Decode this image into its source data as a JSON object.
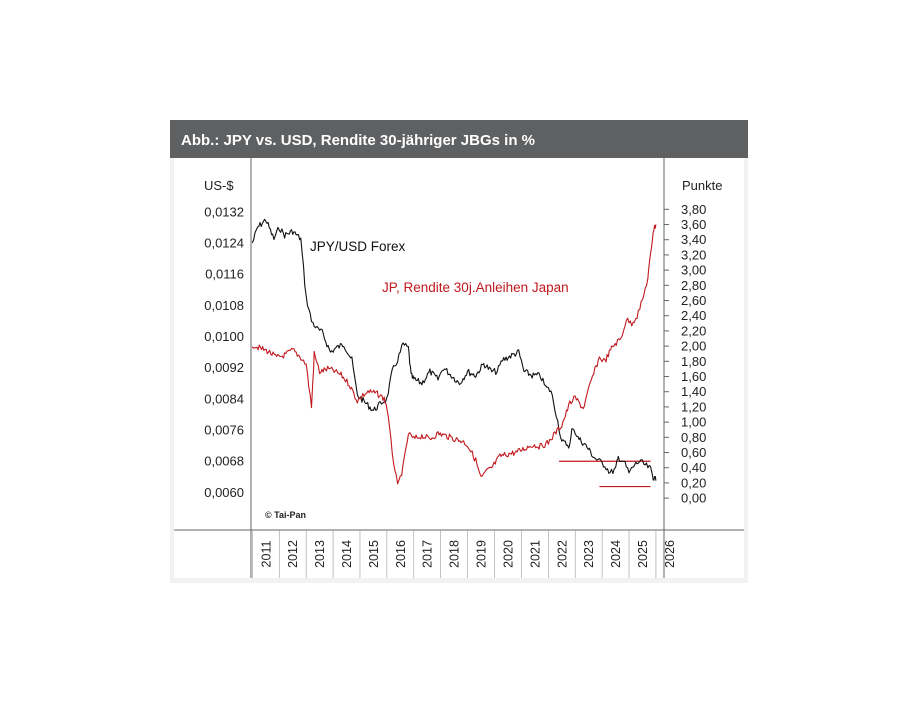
{
  "chart_data": {
    "type": "line",
    "title": "Abb.: JPY vs. USD, Rendite 30-jähriger JBGs in %",
    "ylabel_left": "US-$",
    "ylabel_right": "Punkte",
    "source": "© Tai-Pan",
    "colors": {
      "header": "#5f6062",
      "jpy": "#111111",
      "yield": "#c0191e"
    },
    "x_ticks": [
      "2011",
      "2012",
      "2013",
      "2014",
      "2015",
      "2016",
      "2017",
      "2018",
      "2019",
      "2020",
      "2021",
      "2022",
      "2023",
      "2024",
      "2025",
      "2026"
    ],
    "y_left": {
      "min": 0.0056,
      "max": 0.0134,
      "ticks": [
        "0,0132",
        "0,0124",
        "0,0116",
        "0,0108",
        "0,0100",
        "0,0092",
        "0,0084",
        "0,0076",
        "0,0068",
        "0,0060"
      ],
      "tick_values": [
        0.0132,
        0.0124,
        0.0116,
        0.0108,
        0.01,
        0.0092,
        0.0084,
        0.0076,
        0.0068,
        0.006
      ]
    },
    "y_right": {
      "min": -0.13,
      "max": 3.87,
      "ticks": [
        "3,80",
        "3,60",
        "3,40",
        "3,20",
        "3,00",
        "2,80",
        "2,60",
        "2,40",
        "2,20",
        "2,00",
        "1,80",
        "1,60",
        "1,40",
        "1,20",
        "1,00",
        "0,80",
        "0,60",
        "0,40",
        "0,20",
        "0,00"
      ],
      "tick_values": [
        3.8,
        3.6,
        3.4,
        3.2,
        3.0,
        2.8,
        2.6,
        2.4,
        2.2,
        2.0,
        1.8,
        1.6,
        1.4,
        1.2,
        1.0,
        0.8,
        0.6,
        0.4,
        0.2,
        0.0
      ]
    },
    "series": [
      {
        "name": "JPY/USD Forex",
        "axis": "left",
        "x": [
          2011.0,
          2011.2,
          2011.5,
          2011.8,
          2012.0,
          2012.2,
          2012.5,
          2012.8,
          2013.0,
          2013.2,
          2013.4,
          2013.6,
          2013.9,
          2014.1,
          2014.4,
          2014.7,
          2014.9,
          2015.2,
          2015.5,
          2015.8,
          2016.0,
          2016.2,
          2016.4,
          2016.6,
          2016.8,
          2016.9,
          2017.0,
          2017.3,
          2017.6,
          2017.9,
          2018.1,
          2018.4,
          2018.7,
          2019.0,
          2019.3,
          2019.6,
          2019.9,
          2020.1,
          2020.3,
          2020.6,
          2020.9,
          2021.1,
          2021.4,
          2021.7,
          2021.9,
          2022.1,
          2022.3,
          2022.5,
          2022.8,
          2022.9,
          2023.1,
          2023.4,
          2023.7,
          2023.9,
          2024.1,
          2024.3,
          2024.5,
          2024.6,
          2024.8,
          2025.0,
          2025.2,
          2025.4,
          2025.6,
          2025.8,
          2025.9,
          2026.0
        ],
        "y": [
          0.0124,
          0.0128,
          0.013,
          0.0125,
          0.0128,
          0.0126,
          0.0127,
          0.0125,
          0.011,
          0.0104,
          0.0102,
          0.0101,
          0.0096,
          0.0097,
          0.0098,
          0.0094,
          0.0085,
          0.0083,
          0.0081,
          0.0083,
          0.0084,
          0.0091,
          0.0094,
          0.0098,
          0.0097,
          0.009,
          0.0089,
          0.0088,
          0.0091,
          0.0089,
          0.0092,
          0.009,
          0.0088,
          0.0091,
          0.009,
          0.0093,
          0.0091,
          0.0091,
          0.0094,
          0.0095,
          0.0096,
          0.0091,
          0.009,
          0.009,
          0.0087,
          0.0086,
          0.008,
          0.0073,
          0.0072,
          0.0077,
          0.0074,
          0.0072,
          0.0069,
          0.0068,
          0.0067,
          0.0065,
          0.0066,
          0.0069,
          0.0068,
          0.0065,
          0.0067,
          0.0068,
          0.0067,
          0.0066,
          0.0064,
          0.0063
        ]
      },
      {
        "name": "JP, Rendite 30j.Anleihen Japan",
        "axis": "right",
        "x": [
          2011.0,
          2011.3,
          2011.6,
          2011.9,
          2012.2,
          2012.5,
          2012.8,
          2013.0,
          2013.2,
          2013.3,
          2013.5,
          2013.8,
          2014.0,
          2014.3,
          2014.6,
          2014.9,
          2015.1,
          2015.3,
          2015.6,
          2015.9,
          2016.0,
          2016.2,
          2016.4,
          2016.6,
          2016.8,
          2017.0,
          2017.3,
          2017.6,
          2017.9,
          2018.2,
          2018.5,
          2018.8,
          2019.0,
          2019.3,
          2019.5,
          2019.7,
          2019.9,
          2020.2,
          2020.5,
          2020.8,
          2021.1,
          2021.4,
          2021.7,
          2022.0,
          2022.2,
          2022.5,
          2022.8,
          2023.0,
          2023.3,
          2023.6,
          2023.9,
          2024.1,
          2024.4,
          2024.7,
          2024.9,
          2025.1,
          2025.3,
          2025.5,
          2025.7,
          2025.8,
          2025.9,
          2026.0
        ],
        "y": [
          2.02,
          1.97,
          1.93,
          1.85,
          1.88,
          1.95,
          1.85,
          1.76,
          1.2,
          1.9,
          1.66,
          1.7,
          1.68,
          1.62,
          1.5,
          1.28,
          1.35,
          1.4,
          1.38,
          1.31,
          1.2,
          0.6,
          0.15,
          0.4,
          0.85,
          0.78,
          0.82,
          0.78,
          0.85,
          0.82,
          0.78,
          0.75,
          0.7,
          0.5,
          0.26,
          0.35,
          0.4,
          0.55,
          0.58,
          0.6,
          0.65,
          0.7,
          0.68,
          0.73,
          0.83,
          0.96,
          1.25,
          1.32,
          1.18,
          1.55,
          1.85,
          1.8,
          2.0,
          2.1,
          2.35,
          2.3,
          2.4,
          2.6,
          2.9,
          3.2,
          3.52,
          3.6
        ]
      }
    ],
    "annotations": [
      {
        "text": "JPY/USD Forex",
        "series": 0
      },
      {
        "text": "JP, Rendite 30j.Anleihen Japan",
        "series": 1
      }
    ],
    "reference_lines": [
      {
        "axis": "left",
        "value": 0.0068,
        "x_from": 2022.4,
        "x_to": 2025.8,
        "color": "#c0191e"
      },
      {
        "axis": "left",
        "value": 0.00615,
        "x_from": 2023.9,
        "x_to": 2025.8,
        "color": "#c0191e"
      }
    ]
  }
}
